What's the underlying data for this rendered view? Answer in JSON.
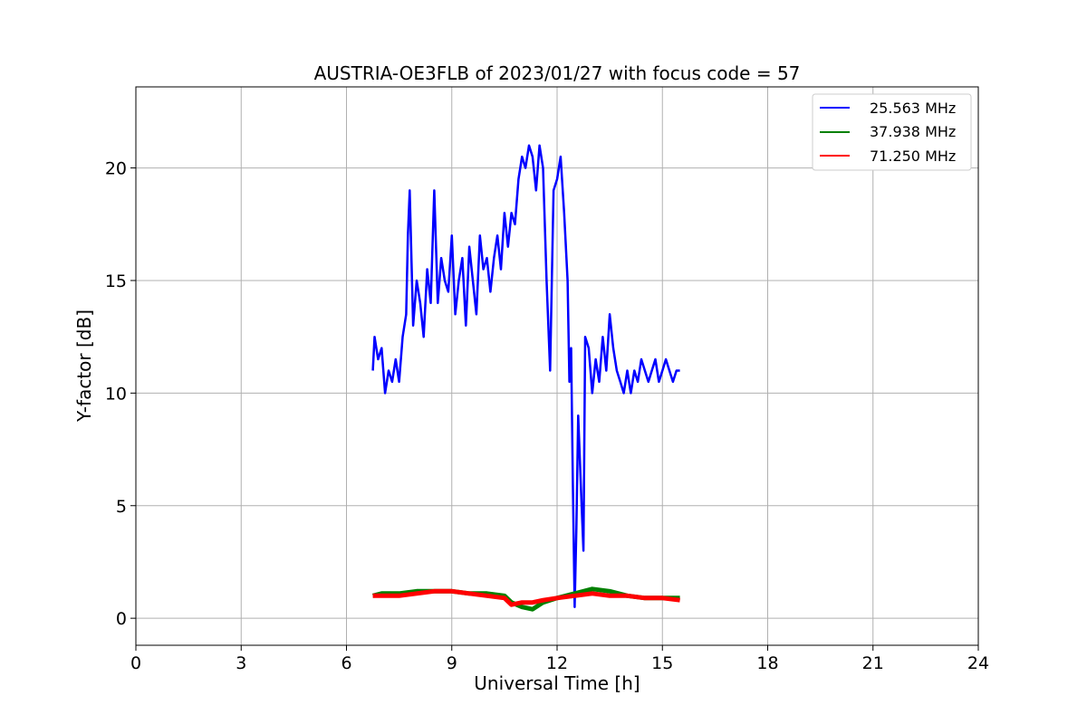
{
  "chart_data": {
    "type": "line",
    "title": "AUSTRIA-OE3FLB of 2023/01/27 with focus code = 57",
    "xlabel": "Universal Time [h]",
    "ylabel": "Y-factor [dB]",
    "xlim": [
      0,
      24
    ],
    "ylim": [
      -1.2,
      23.6
    ],
    "xticks": [
      0,
      3,
      6,
      9,
      12,
      15,
      18,
      21,
      24
    ],
    "yticks": [
      0,
      5,
      10,
      15,
      20
    ],
    "grid": true,
    "legend": "top-right",
    "series": [
      {
        "name": "25.563 MHz",
        "color": "#0000ff",
        "x": [
          6.75,
          6.8,
          6.9,
          7.0,
          7.1,
          7.2,
          7.3,
          7.4,
          7.5,
          7.6,
          7.7,
          7.75,
          7.8,
          7.9,
          8.0,
          8.1,
          8.2,
          8.3,
          8.4,
          8.5,
          8.6,
          8.7,
          8.8,
          8.9,
          9.0,
          9.1,
          9.2,
          9.3,
          9.4,
          9.5,
          9.6,
          9.7,
          9.8,
          9.9,
          10.0,
          10.1,
          10.2,
          10.3,
          10.4,
          10.5,
          10.6,
          10.7,
          10.8,
          10.9,
          11.0,
          11.1,
          11.2,
          11.3,
          11.4,
          11.5,
          11.6,
          11.7,
          11.8,
          11.9,
          12.0,
          12.1,
          12.2,
          12.3,
          12.35,
          12.4,
          12.45,
          12.5,
          12.55,
          12.6,
          12.65,
          12.7,
          12.75,
          12.8,
          12.9,
          13.0,
          13.1,
          13.2,
          13.3,
          13.4,
          13.5,
          13.6,
          13.7,
          13.8,
          13.9,
          14.0,
          14.1,
          14.2,
          14.3,
          14.4,
          14.5,
          14.6,
          14.7,
          14.8,
          14.9,
          15.0,
          15.1,
          15.2,
          15.3,
          15.4,
          15.5
        ],
        "y": [
          11.0,
          12.5,
          11.5,
          12.0,
          10.0,
          11.0,
          10.5,
          11.5,
          10.5,
          12.5,
          13.5,
          17.0,
          19.0,
          13.0,
          15.0,
          14.0,
          12.5,
          15.5,
          14.0,
          19.0,
          14.0,
          16.0,
          15.0,
          14.5,
          17.0,
          13.5,
          15.0,
          16.0,
          13.0,
          16.5,
          15.0,
          13.5,
          17.0,
          15.5,
          16.0,
          14.5,
          16.0,
          17.0,
          15.5,
          18.0,
          16.5,
          18.0,
          17.5,
          19.5,
          20.5,
          20.0,
          21.0,
          20.5,
          19.0,
          21.0,
          20.0,
          15.0,
          11.0,
          19.0,
          19.5,
          20.5,
          18.0,
          15.0,
          10.5,
          12.0,
          6.0,
          0.5,
          4.0,
          9.0,
          7.0,
          5.0,
          3.0,
          12.5,
          12.0,
          10.0,
          11.5,
          10.5,
          12.5,
          11.0,
          13.5,
          12.0,
          11.0,
          10.5,
          10.0,
          11.0,
          10.0,
          11.0,
          10.5,
          11.5,
          11.0,
          10.5,
          11.0,
          11.5,
          10.5,
          11.0,
          11.5,
          11.0,
          10.5,
          11.0,
          11.0
        ]
      },
      {
        "name": "37.938 MHz",
        "color": "#008000",
        "x": [
          6.75,
          7.0,
          7.5,
          8.0,
          8.5,
          9.0,
          9.5,
          10.0,
          10.5,
          10.7,
          11.0,
          11.3,
          11.6,
          12.0,
          12.5,
          13.0,
          13.5,
          14.0,
          14.5,
          15.0,
          15.5
        ],
        "y": [
          1.0,
          1.1,
          1.1,
          1.2,
          1.2,
          1.2,
          1.1,
          1.1,
          1.0,
          0.7,
          0.5,
          0.4,
          0.7,
          0.9,
          1.1,
          1.3,
          1.2,
          1.0,
          0.9,
          0.9,
          0.9
        ]
      },
      {
        "name": "71.250 MHz",
        "color": "#ff0000",
        "x": [
          6.75,
          7.0,
          7.5,
          8.0,
          8.5,
          9.0,
          9.5,
          10.0,
          10.5,
          10.7,
          11.0,
          11.3,
          11.6,
          12.0,
          12.5,
          13.0,
          13.5,
          14.0,
          14.5,
          15.0,
          15.5
        ],
        "y": [
          1.0,
          1.0,
          1.0,
          1.1,
          1.2,
          1.2,
          1.1,
          1.0,
          0.9,
          0.6,
          0.7,
          0.7,
          0.8,
          0.9,
          1.0,
          1.1,
          1.0,
          1.0,
          0.9,
          0.9,
          0.8
        ]
      }
    ]
  }
}
